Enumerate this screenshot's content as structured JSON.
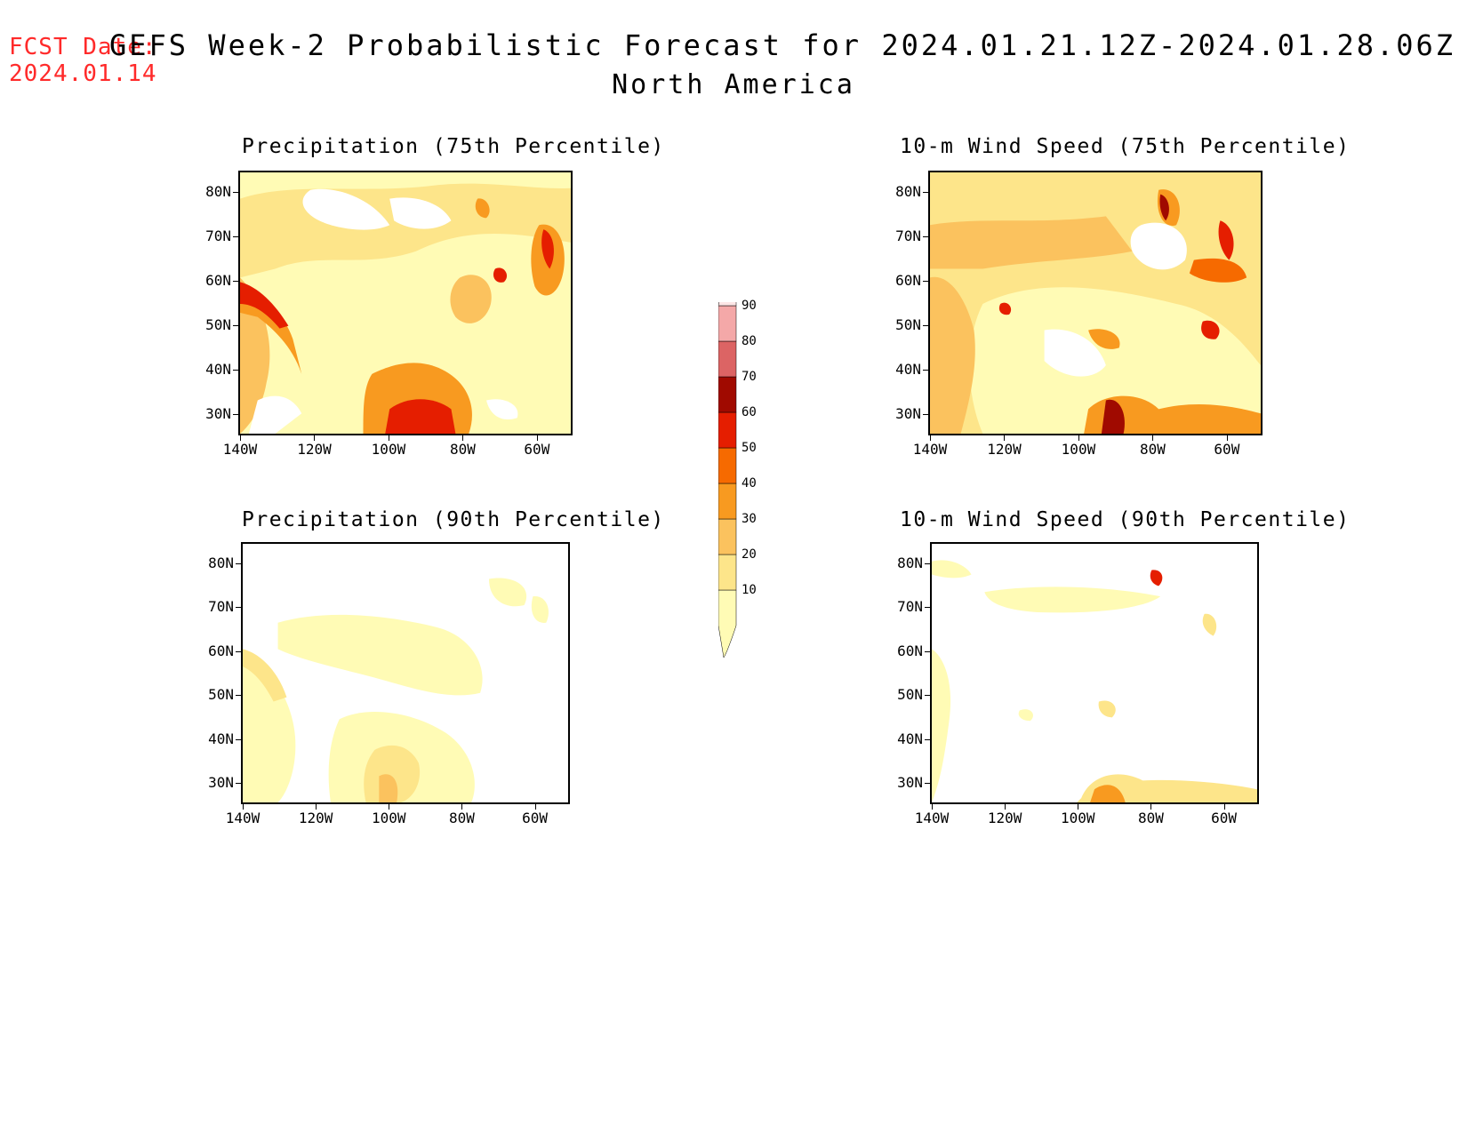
{
  "header": {
    "fcst_line1": "FCST Date:",
    "fcst_line2": "2024.01.14",
    "title": "GEFS Week-2 Probabilistic Forecast for 2024.01.21.12Z-2024.01.28.06Z",
    "subtitle": "North America"
  },
  "panels": [
    {
      "title": "Precipitation (75th Percentile)"
    },
    {
      "title": "10-m Wind Speed (75th Percentile)"
    },
    {
      "title": "Precipitation (90th Percentile)"
    },
    {
      "title": "10-m Wind Speed (90th Percentile)"
    }
  ],
  "axes": {
    "lat_labels": [
      "80N",
      "70N",
      "60N",
      "50N",
      "40N",
      "30N"
    ],
    "lon_labels": [
      "140W",
      "120W",
      "100W",
      "80W",
      "60W"
    ]
  },
  "colorbar": {
    "levels": [
      "10",
      "20",
      "30",
      "40",
      "50",
      "60",
      "70",
      "80",
      "90"
    ],
    "colors": [
      "#fffbb5",
      "#fde58a",
      "#fbc25e",
      "#f89a20",
      "#f66a00",
      "#e51e00",
      "#a00a00",
      "#dc6464",
      "#f4a8a8",
      "#fde6e6"
    ]
  }
}
